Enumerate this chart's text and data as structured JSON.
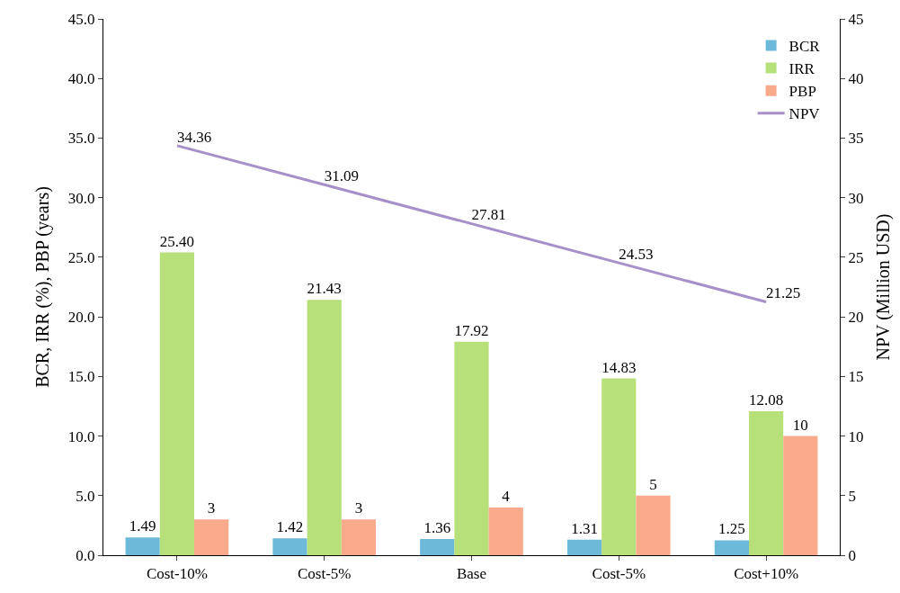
{
  "chart_data": {
    "type": "bar",
    "ylabel": "BCR, IRR (%), PBP (years)",
    "y2label": "NPV (Million USD)",
    "categories": [
      "Cost-10%",
      "Cost-5%",
      "Base",
      "Cost-5%",
      "Cost+10%"
    ],
    "series": [
      {
        "name": "BCR",
        "color": "#6cb9da",
        "values": [
          1.49,
          1.42,
          1.36,
          1.31,
          1.25
        ],
        "value_labels": [
          "1.49",
          "1.42",
          "1.36",
          "1.31",
          "1.25"
        ]
      },
      {
        "name": "IRR",
        "color": "#b7e07b",
        "values": [
          25.4,
          21.43,
          17.92,
          14.83,
          12.08
        ],
        "value_labels": [
          "25.40",
          "21.43",
          "17.92",
          "14.83",
          "12.08"
        ]
      },
      {
        "name": "PBP",
        "color": "#f9aa8b",
        "values": [
          3,
          3,
          4,
          5,
          10
        ],
        "value_labels": [
          "3",
          "3",
          "4",
          "5",
          "10"
        ]
      },
      {
        "name": "NPV",
        "type": "line",
        "axis": "y2",
        "color": "#a690c8",
        "values": [
          34.36,
          31.09,
          27.81,
          24.53,
          21.25
        ],
        "value_labels": [
          "34.36",
          "31.09",
          "27.81",
          "24.53",
          "21.25"
        ]
      }
    ],
    "ylim": [
      0,
      45
    ],
    "yticks": [
      {
        "value": 0,
        "label": "0.0"
      },
      {
        "value": 5,
        "label": "5.0"
      },
      {
        "value": 10,
        "label": "10.0"
      },
      {
        "value": 15,
        "label": "15.0"
      },
      {
        "value": 20,
        "label": "20.0"
      },
      {
        "value": 25,
        "label": "25.0"
      },
      {
        "value": 30,
        "label": "30.0"
      },
      {
        "value": 35,
        "label": "35.0"
      },
      {
        "value": 40,
        "label": "40.0"
      },
      {
        "value": 45,
        "label": "45.0"
      }
    ],
    "y2lim": [
      0,
      45
    ],
    "y2ticks": [
      0,
      5,
      10,
      15,
      20,
      25,
      30,
      35,
      40,
      45
    ],
    "legend": "top right"
  }
}
